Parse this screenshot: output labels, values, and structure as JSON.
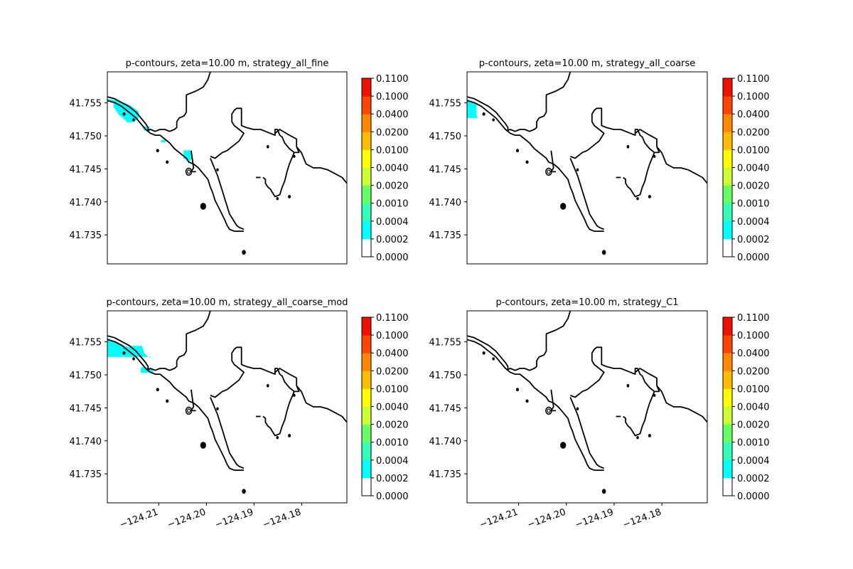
{
  "colors": {
    "coastline": "#000000",
    "levels": [
      "#ffffff",
      "#00ffff",
      "#33ffbb",
      "#66ff66",
      "#ccff33",
      "#ffff00",
      "#ffbb00",
      "#ff8800",
      "#ff4400",
      "#ee1100",
      "#ff0000"
    ]
  },
  "chart_data": [
    {
      "type": "heatmap",
      "title": "p-contours, zeta=10.00 m, strategy_all_fine",
      "xlim": [
        -124.2208,
        -124.1705
      ],
      "ylim": [
        41.7306,
        41.7597
      ],
      "xticks": [
        -124.21,
        -124.2,
        -124.19,
        -124.18
      ],
      "xtick_labels": [
        "−124.21",
        "−124.20",
        "−124.19",
        "−124.18"
      ],
      "show_xticks": false,
      "yticks": [
        41.735,
        41.74,
        41.745,
        41.75,
        41.755
      ],
      "ytick_labels": [
        "41.735",
        "41.740",
        "41.745",
        "41.750",
        "41.755"
      ],
      "colorbar": {
        "levels": [
          0,
          0.0002,
          0.0004,
          0.001,
          0.002,
          0.004,
          0.01,
          0.02,
          0.04,
          0.1,
          0.11
        ],
        "tick_labels": [
          "0.0000",
          "0.0002",
          "0.0004",
          "0.0010",
          "0.0020",
          "0.0040",
          "0.0100",
          "0.0200",
          "0.0400",
          "0.1000",
          "0.1100"
        ]
      },
      "filled_regions": [
        {
          "level": "0.0002-0.0004",
          "lon": [
            -124.2208,
            -124.2195,
            -124.2195,
            -124.2185,
            -124.2165,
            -124.2152,
            -124.2142,
            -124.2142,
            -124.216,
            -124.2175,
            -124.219,
            -124.2208
          ],
          "lat": [
            41.7552,
            41.7552,
            41.7544,
            41.7533,
            41.752,
            41.7521,
            41.7527,
            41.7537,
            41.7546,
            41.7551,
            41.7554,
            41.7556
          ]
        },
        {
          "level": "0.0002-0.0004",
          "lon": [
            -124.2135,
            -124.212,
            -124.2118,
            -124.213
          ],
          "lat": [
            41.7514,
            41.7514,
            41.7508,
            41.7508
          ]
        },
        {
          "level": "0.0002-0.0004",
          "lon": [
            -124.2095,
            -124.2085,
            -124.2085,
            -124.2095
          ],
          "lat": [
            41.7494,
            41.7494,
            41.749,
            41.749
          ]
        },
        {
          "level": "0.0002-0.0004",
          "lon": [
            -124.2048,
            -124.2033,
            -124.203,
            -124.2036,
            -124.2048
          ],
          "lat": [
            41.7478,
            41.7478,
            41.7466,
            41.7461,
            41.7466
          ]
        }
      ]
    },
    {
      "type": "heatmap",
      "title": "p-contours, zeta=10.00 m, strategy_all_coarse",
      "xlim": [
        -124.2208,
        -124.1705
      ],
      "ylim": [
        41.7306,
        41.7597
      ],
      "xticks": [
        -124.21,
        -124.2,
        -124.19,
        -124.18
      ],
      "xtick_labels": [
        "−124.21",
        "−124.20",
        "−124.19",
        "−124.18"
      ],
      "show_xticks": false,
      "yticks": [
        41.735,
        41.74,
        41.745,
        41.75,
        41.755
      ],
      "ytick_labels": [
        "41.735",
        "41.740",
        "41.745",
        "41.750",
        "41.755"
      ],
      "colorbar": {
        "levels": [
          0,
          0.0002,
          0.0004,
          0.001,
          0.002,
          0.004,
          0.01,
          0.02,
          0.04,
          0.1,
          0.11
        ],
        "tick_labels": [
          "0.0000",
          "0.0002",
          "0.0004",
          "0.0010",
          "0.0020",
          "0.0040",
          "0.0100",
          "0.0200",
          "0.0400",
          "0.1000",
          "0.1100"
        ]
      },
      "filled_regions": [
        {
          "level": "0.0002-0.0004",
          "lon": [
            -124.2208,
            -124.2188,
            -124.2188,
            -124.2185,
            -124.2208
          ],
          "lat": [
            41.7556,
            41.7549,
            41.7531,
            41.7527,
            41.7527
          ]
        }
      ]
    },
    {
      "type": "heatmap",
      "title": "p-contours, zeta=10.00 m, strategy_all_coarse_mod",
      "xlim": [
        -124.2208,
        -124.1705
      ],
      "ylim": [
        41.7306,
        41.7597
      ],
      "xticks": [
        -124.21,
        -124.2,
        -124.19,
        -124.18
      ],
      "xtick_labels": [
        "−124.21",
        "−124.20",
        "−124.19",
        "−124.18"
      ],
      "show_xticks": true,
      "yticks": [
        41.735,
        41.74,
        41.745,
        41.75,
        41.755
      ],
      "ytick_labels": [
        "41.735",
        "41.740",
        "41.745",
        "41.750",
        "41.755"
      ],
      "colorbar": {
        "levels": [
          0,
          0.0002,
          0.0004,
          0.001,
          0.002,
          0.004,
          0.01,
          0.02,
          0.04,
          0.1,
          0.11
        ],
        "tick_labels": [
          "0.0000",
          "0.0002",
          "0.0004",
          "0.0010",
          "0.0020",
          "0.0040",
          "0.0100",
          "0.0200",
          "0.0400",
          "0.1000",
          "0.1100"
        ]
      },
      "filled_regions": [
        {
          "level": "0.0002-0.0004",
          "lon": [
            -124.2208,
            -124.219,
            -124.2165,
            -124.215,
            -124.214,
            -124.214,
            -124.2208
          ],
          "lat": [
            41.7556,
            41.755,
            41.7542,
            41.7538,
            41.7533,
            41.7527,
            41.7527
          ]
        },
        {
          "level": "0.0002-0.0004",
          "lon": [
            -124.2162,
            -124.2135,
            -124.213,
            -124.2118,
            -124.2118,
            -124.2162
          ],
          "lat": [
            41.7544,
            41.7544,
            41.7532,
            41.7525,
            41.7527,
            41.7527
          ]
        },
        {
          "level": "0.0002-0.0004",
          "lon": [
            -124.2155,
            -124.2152,
            -124.2155
          ],
          "lat": [
            41.7535,
            41.7527,
            41.7527
          ]
        },
        {
          "level": "0.0002-0.0004",
          "lon": [
            -124.216,
            -124.215,
            -124.215,
            -124.216
          ],
          "lat": [
            41.754,
            41.754,
            41.7536,
            41.7536
          ]
        },
        {
          "level": "0.0002-0.0004",
          "lon": [
            -124.2155,
            -124.2148,
            -124.2148,
            -124.2155
          ],
          "lat": [
            41.7534,
            41.7534,
            41.753,
            41.753
          ]
        },
        {
          "level": "0.0002-0.0004",
          "lon": [
            -124.2138,
            -124.213,
            -124.212,
            -124.2112,
            -124.2112,
            -124.2138
          ],
          "lat": [
            41.7511,
            41.7512,
            41.751,
            41.7507,
            41.7503,
            41.7503
          ]
        }
      ]
    },
    {
      "type": "heatmap",
      "title": "p-contours, zeta=10.00 m, strategy_C1",
      "xlim": [
        -124.2208,
        -124.1705
      ],
      "ylim": [
        41.7306,
        41.7597
      ],
      "xticks": [
        -124.21,
        -124.2,
        -124.19,
        -124.18
      ],
      "xtick_labels": [
        "−124.21",
        "−124.20",
        "−124.19",
        "−124.18"
      ],
      "show_xticks": true,
      "yticks": [
        41.735,
        41.74,
        41.745,
        41.75,
        41.755
      ],
      "ytick_labels": [
        "41.735",
        "41.740",
        "41.745",
        "41.750",
        "41.755"
      ],
      "colorbar": {
        "levels": [
          0,
          0.0002,
          0.0004,
          0.001,
          0.002,
          0.004,
          0.01,
          0.02,
          0.04,
          0.1,
          0.11
        ],
        "tick_labels": [
          "0.0000",
          "0.0002",
          "0.0004",
          "0.0010",
          "0.0020",
          "0.0040",
          "0.0100",
          "0.0200",
          "0.0400",
          "0.1000",
          "0.1100"
        ]
      },
      "filled_regions": []
    }
  ]
}
